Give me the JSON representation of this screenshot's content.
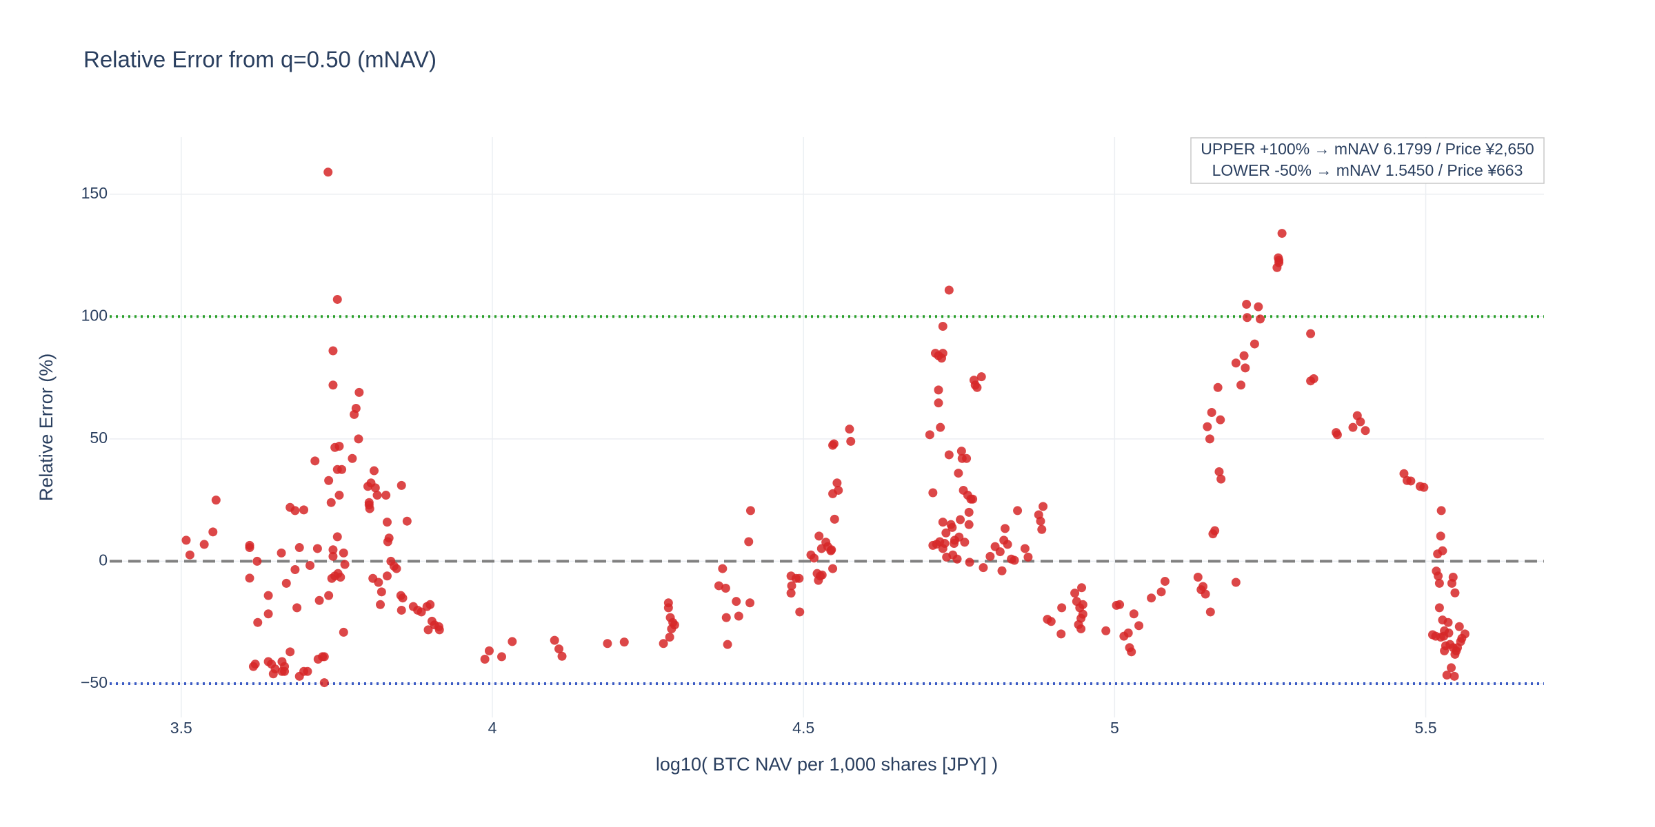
{
  "chart_data": {
    "type": "scatter",
    "title": "Relative Error from q=0.50 (mNAV)",
    "x_label": "log10( BTC NAV per 1,000 shares [JPY] )",
    "y_label": "Relative Error (%)",
    "color": "#d62728",
    "grid": true,
    "xlim": [
      3.385,
      5.69
    ],
    "ylim": [
      -63.8,
      173.3
    ],
    "xticks": [
      3.5,
      4,
      4.5,
      5,
      5.5
    ],
    "yticks": [
      {
        "value": -50,
        "label": "−50"
      },
      0,
      50,
      100,
      150
    ],
    "reference_lines": [
      {
        "value": 100,
        "color": "#2ca02c",
        "dash": "dot"
      },
      {
        "value": 0,
        "color": "#808080",
        "dash": "dash"
      },
      {
        "value": -50,
        "color": "#3b5bc4",
        "dash": "dot"
      }
    ],
    "annotations": [
      "UPPER +100% → mNAV 6.1799 / Price ¥2,650",
      "LOWER -50% → mNAV 1.5450 / Price ¥663"
    ],
    "x": [
      3.508,
      3.514,
      3.537,
      3.551,
      3.556,
      3.61,
      3.61,
      3.61,
      3.616,
      3.619,
      3.622,
      3.623,
      3.64,
      3.64,
      3.64,
      3.645,
      3.648,
      3.651,
      3.661,
      3.662,
      3.662,
      3.666,
      3.666,
      3.669,
      3.675,
      3.675,
      3.683,
      3.683,
      3.686,
      3.69,
      3.69,
      3.697,
      3.697,
      3.703,
      3.707,
      3.715,
      3.719,
      3.72,
      3.722,
      3.727,
      3.73,
      3.73,
      3.736,
      3.737,
      3.737,
      3.741,
      3.742,
      3.744,
      3.744,
      3.744,
      3.744,
      3.747,
      3.747,
      3.751,
      3.751,
      3.751,
      3.752,
      3.754,
      3.754,
      3.756,
      3.758,
      3.761,
      3.761,
      3.763,
      3.775,
      3.778,
      3.781,
      3.785,
      3.786,
      3.8,
      3.802,
      3.802,
      3.803,
      3.805,
      3.808,
      3.81,
      3.812,
      3.815,
      3.817,
      3.82,
      3.822,
      3.829,
      3.831,
      3.831,
      3.832,
      3.834,
      3.837,
      3.842,
      3.846,
      3.853,
      3.854,
      3.854,
      3.856,
      3.863,
      3.873,
      3.88,
      3.886,
      3.895,
      3.897,
      3.9,
      3.903,
      3.907,
      3.914,
      3.915,
      3.988,
      3.995,
      4.015,
      4.032,
      4.1,
      4.107,
      4.112,
      4.185,
      4.212,
      4.275,
      4.283,
      4.283,
      4.285,
      4.286,
      4.288,
      4.29,
      4.293,
      4.364,
      4.37,
      4.375,
      4.376,
      4.378,
      4.392,
      4.396,
      4.412,
      4.414,
      4.415,
      4.48,
      4.48,
      4.481,
      4.488,
      4.493,
      4.494,
      4.512,
      4.517,
      4.522,
      4.524,
      4.525,
      4.527,
      4.529,
      4.53,
      4.536,
      4.539,
      4.544,
      4.545,
      4.547,
      4.547,
      4.547,
      4.549,
      4.55,
      4.554,
      4.556,
      4.574,
      4.576,
      4.703,
      4.708,
      4.708,
      4.712,
      4.714,
      4.717,
      4.717,
      4.717,
      4.719,
      4.72,
      4.722,
      4.724,
      4.724,
      4.724,
      4.724,
      4.727,
      4.729,
      4.73,
      4.734,
      4.734,
      4.737,
      4.739,
      4.74,
      4.742,
      4.743,
      4.747,
      4.749,
      4.75,
      4.752,
      4.754,
      4.755,
      4.757,
      4.759,
      4.762,
      4.764,
      4.766,
      4.766,
      4.767,
      4.769,
      4.772,
      4.774,
      4.776,
      4.779,
      4.786,
      4.789,
      4.8,
      4.808,
      4.816,
      4.819,
      4.822,
      4.824,
      4.828,
      4.834,
      4.839,
      4.844,
      4.856,
      4.861,
      4.878,
      4.881,
      4.883,
      4.885,
      4.892,
      4.898,
      4.915,
      4.914,
      4.936,
      4.939,
      4.942,
      4.944,
      4.946,
      4.946,
      4.947,
      4.949,
      4.949,
      4.986,
      5.003,
      5.008,
      5.015,
      5.022,
      5.024,
      5.027,
      5.031,
      5.039,
      5.059,
      5.075,
      5.081,
      5.134,
      5.139,
      5.142,
      5.146,
      5.149,
      5.153,
      5.154,
      5.156,
      5.158,
      5.161,
      5.166,
      5.168,
      5.17,
      5.171,
      5.195,
      5.195,
      5.203,
      5.208,
      5.21,
      5.212,
      5.213,
      5.225,
      5.231,
      5.234,
      5.261,
      5.263,
      5.264,
      5.264,
      5.269,
      5.315,
      5.315,
      5.32,
      5.356,
      5.358,
      5.383,
      5.39,
      5.395,
      5.403,
      5.465,
      5.47,
      5.476,
      5.491,
      5.497,
      5.511,
      5.516,
      5.517,
      5.519,
      5.52,
      5.522,
      5.522,
      5.524,
      5.524,
      5.525,
      5.527,
      5.527,
      5.529,
      5.53,
      5.53,
      5.532,
      5.534,
      5.536,
      5.537,
      5.539,
      5.541,
      5.542,
      5.544,
      5.544,
      5.546,
      5.547,
      5.547,
      5.549,
      5.551,
      5.554,
      5.556,
      5.558,
      5.563
    ],
    "values": [
      8.6,
      2.6,
      6.9,
      12,
      25,
      5.6,
      6.5,
      -6.9,
      -43,
      -42,
      0,
      -25,
      -14,
      -21.5,
      -41,
      -42,
      -46,
      -44,
      3.4,
      -41,
      -45,
      -43,
      -45,
      -9,
      -37,
      22,
      -3.4,
      20.7,
      -19,
      -47,
      5.6,
      21,
      -45,
      -45,
      -1.7,
      41,
      5.2,
      -40,
      -16,
      -39,
      -39,
      -49.6,
      159,
      33,
      -14,
      24,
      -7,
      86,
      4.7,
      72,
      2,
      -6,
      46.5,
      107,
      37.5,
      10,
      -5,
      47,
      27,
      -6.5,
      37.5,
      -29,
      3.4,
      -1.3,
      42,
      60,
      62.5,
      50,
      69,
      30.6,
      24,
      23,
      21.5,
      32,
      -7,
      37,
      30,
      27,
      -8.6,
      -17.7,
      -12.5,
      27,
      16,
      -6,
      8,
      9.5,
      0,
      -2,
      -3,
      -14,
      31,
      -20,
      -15,
      16.4,
      -18.5,
      -20,
      -20.7,
      -18.5,
      -28,
      -17.7,
      -24.5,
      -26,
      -26.7,
      -28,
      -40,
      -36.6,
      -39,
      -32.8,
      -32.3,
      -35.8,
      -38.8,
      -33.6,
      -33,
      -33.6,
      -17,
      -19,
      -31,
      -23,
      -27.6,
      -25,
      -26,
      -10,
      -3,
      -11,
      -23,
      -34,
      -16.4,
      -22.4,
      8,
      -17,
      20.7,
      -6,
      -13,
      -10,
      -7,
      -7,
      -20.7,
      2.6,
      1.3,
      -5,
      -7.8,
      10.3,
      -6,
      5.2,
      -5.6,
      7.8,
      6,
      4.3,
      4.7,
      -3,
      27.6,
      47.4,
      48,
      17.2,
      32,
      29,
      54,
      49,
      51.7,
      28,
      6.5,
      85,
      7,
      84,
      70,
      64.7,
      8,
      54.7,
      83,
      85,
      16,
      5.2,
      96,
      7.3,
      11.6,
      1.7,
      43.5,
      110.8,
      15,
      13.8,
      2.6,
      7.3,
      8.6,
      0.9,
      36,
      9.9,
      17,
      45,
      42,
      29,
      7.8,
      42,
      27,
      20,
      15,
      -0.4,
      25.4,
      25.4,
      74,
      72,
      71,
      75.4,
      -2.6,
      2,
      6,
      3.9,
      -3.9,
      8.6,
      13.4,
      6.9,
      0.9,
      0.4,
      20.7,
      5.2,
      1.7,
      19,
      16.4,
      13,
      22.4,
      -23.7,
      -24.6,
      -19,
      -29.7,
      -13,
      -16.4,
      -25.9,
      -19,
      -23.3,
      -27.6,
      -10.8,
      -17.7,
      -21.6,
      -28.4,
      -18,
      -17.7,
      -30.6,
      -29.3,
      -35.3,
      -37,
      -21.5,
      -26.3,
      -15,
      -12.5,
      -8.2,
      -6.5,
      -11.6,
      -10.3,
      -13.4,
      55,
      50,
      -20.7,
      60.8,
      11.2,
      12.5,
      71,
      36.6,
      57.8,
      33.6,
      -8.6,
      81,
      72,
      84,
      79,
      105,
      99.6,
      88.8,
      104,
      99,
      120,
      124,
      123,
      122,
      134,
      93,
      73.7,
      74.6,
      52.6,
      51.7,
      54.7,
      59.5,
      57,
      53.4,
      35.8,
      33,
      32.8,
      30.6,
      30.2,
      -30,
      -30.6,
      -4,
      3,
      -6,
      -19,
      -9,
      -31,
      10.3,
      20.7,
      4.3,
      -24,
      -30.6,
      -28.4,
      -36.6,
      -34.5,
      -46.5,
      -25,
      -29.3,
      -34,
      -43.5,
      -9,
      -35.3,
      -6.5,
      -47,
      -38,
      -12.9,
      -36.6,
      -35.3,
      -26.7,
      -32.8,
      -31.5,
      -29.7
    ]
  }
}
